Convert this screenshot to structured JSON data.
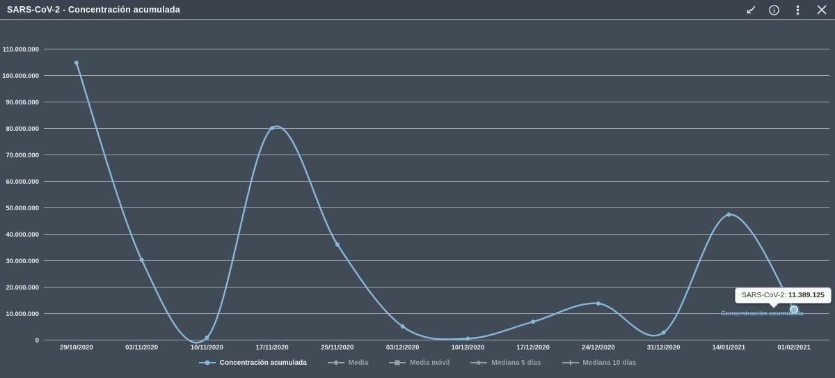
{
  "window": {
    "title": "SARS-CoV-2 - Concentración acumulada",
    "toolbar_icons": [
      "trend-arrow-icon",
      "info-icon",
      "kebab-menu-icon",
      "close-icon"
    ]
  },
  "colors": {
    "background": "#414b55",
    "header_background": "#3a434d",
    "gridline": "#b4bac0",
    "axis_label": "#e7eaee",
    "series_line": "#85b8d9",
    "legend_active_text": "#eef1f4",
    "legend_inactive": "#99a1a9",
    "tooltip_background": "#f7f8f8",
    "series_end_label_color": "#7cb1d6"
  },
  "chart_data": {
    "type": "line",
    "title": "SARS-CoV-2 - Concentración acumulada",
    "categories": [
      "29/10/2020",
      "03/11/2020",
      "10/11/2020",
      "17/11/2020",
      "25/11/2020",
      "03/12/2020",
      "10/12/2020",
      "17/12/2020",
      "24/12/2020",
      "31/12/2020",
      "14/01/2021",
      "01/02/2021"
    ],
    "series": [
      {
        "name": "Concentración acumulada",
        "color": "#85b8d9",
        "visible": true,
        "marker": "circle",
        "values": [
          104700000,
          30200000,
          800000,
          80000000,
          36000000,
          5000000,
          400000,
          6800000,
          13700000,
          2700000,
          47300000,
          11389125
        ]
      },
      {
        "name": "Media",
        "visible": false,
        "marker": "diamond"
      },
      {
        "name": "Media móvil",
        "visible": false,
        "marker": "square"
      },
      {
        "name": "Mediana 5 días",
        "visible": false,
        "marker": "star"
      },
      {
        "name": "Mediana 10 días",
        "visible": false,
        "marker": "plus"
      }
    ],
    "ylim": [
      0,
      110000000
    ],
    "ytick_step": 10000000,
    "ytick_labels": [
      "0",
      "10.000.000",
      "20.000.000",
      "30.000.000",
      "40.000.000",
      "50.000.000",
      "60.000.000",
      "70.000.000",
      "80.000.000",
      "90.000.000",
      "100.000.000",
      "110.000.000"
    ],
    "grid": true,
    "legend_position": "bottom",
    "highlighted_point": {
      "category": "01/02/2021",
      "value": 11389125
    }
  },
  "legend": {
    "items": [
      {
        "label": "Concentración acumulada",
        "marker": "circle",
        "active": true
      },
      {
        "label": "Media",
        "marker": "diamond",
        "active": false
      },
      {
        "label": "Media móvil",
        "marker": "square",
        "active": false
      },
      {
        "label": "Mediana 5 días",
        "marker": "star",
        "active": false
      },
      {
        "label": "Mediana 10 días",
        "marker": "plus",
        "active": false
      }
    ]
  },
  "tooltip": {
    "label": "SARS-CoV-2:",
    "value": "11.389.125"
  },
  "series_end_label": "Concentración acumulada"
}
